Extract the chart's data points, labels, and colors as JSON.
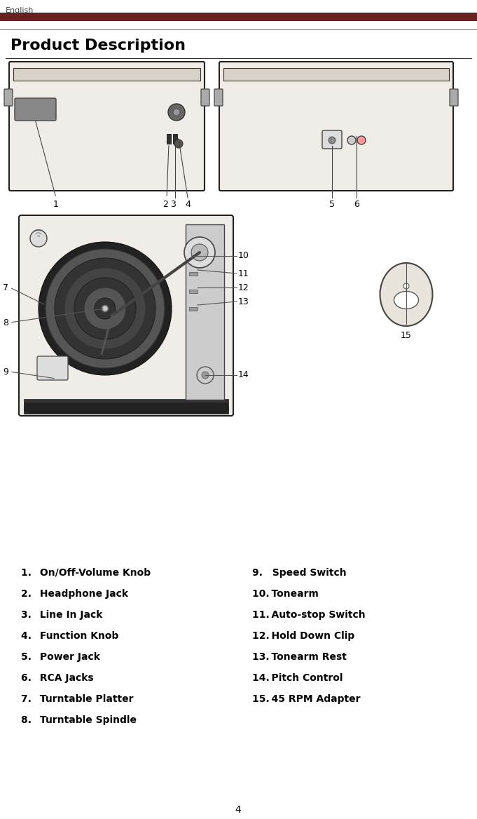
{
  "title": "Product Description",
  "header_text": "English",
  "page_number": "4",
  "dark_red_bar_color": "#6B2020",
  "thin_line_color": "#555555",
  "left_col_items": [
    "1.  On/Off-Volume Knob",
    "2.  Headphone Jack",
    "3.  Line In Jack",
    "4.  Function Knob",
    "5.  Power Jack",
    "6.  RCA Jacks",
    "7.  Turntable Platter",
    "8.  Turntable Spindle"
  ],
  "right_col_items": [
    "9. Speed Switch",
    "10. Tonearm",
    "11. Auto-stop Switch",
    "12. Hold Down Clip",
    "13. Tonearm Rest",
    "14. Pitch Control",
    "15. 45 RPM Adapter"
  ],
  "background_color": "#ffffff",
  "text_color": "#000000"
}
